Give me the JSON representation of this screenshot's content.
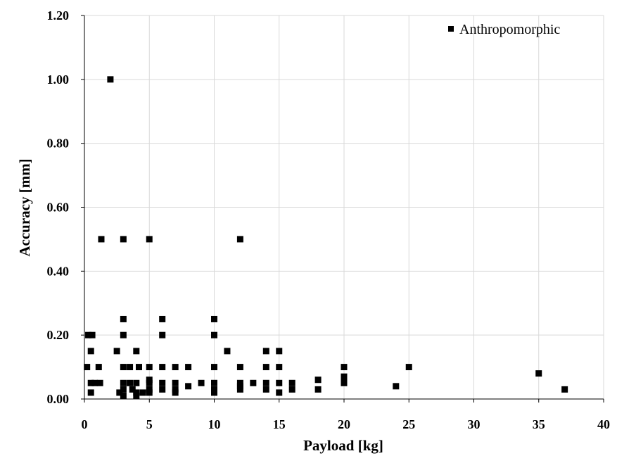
{
  "chart_data": {
    "type": "scatter",
    "title": "",
    "xlabel": "Payload [kg]",
    "ylabel": "Accuracy [mm]",
    "xlim": [
      0,
      40
    ],
    "ylim": [
      0,
      1.2
    ],
    "x_ticks": [
      "0",
      "5",
      "10",
      "15",
      "20",
      "25",
      "30",
      "35",
      "40"
    ],
    "y_ticks": [
      "0.00",
      "0.20",
      "0.40",
      "0.60",
      "0.80",
      "1.00",
      "1.20"
    ],
    "grid": true,
    "legend_position": "top-right",
    "marker": "square",
    "series": [
      {
        "name": "Anthropomorphic",
        "color": "#000000",
        "points": [
          [
            2,
            1.0
          ],
          [
            1.3,
            0.5
          ],
          [
            3,
            0.5
          ],
          [
            5,
            0.5
          ],
          [
            12,
            0.5
          ],
          [
            0.3,
            0.2
          ],
          [
            0.6,
            0.2
          ],
          [
            3,
            0.25
          ],
          [
            3,
            0.2
          ],
          [
            6,
            0.25
          ],
          [
            6,
            0.2
          ],
          [
            10,
            0.25
          ],
          [
            10,
            0.2
          ],
          [
            0.5,
            0.15
          ],
          [
            2.5,
            0.15
          ],
          [
            4,
            0.15
          ],
          [
            11,
            0.15
          ],
          [
            14,
            0.15
          ],
          [
            15,
            0.15
          ],
          [
            0.2,
            0.1
          ],
          [
            1.1,
            0.1
          ],
          [
            3,
            0.1
          ],
          [
            3.5,
            0.1
          ],
          [
            4.2,
            0.1
          ],
          [
            5,
            0.1
          ],
          [
            6,
            0.1
          ],
          [
            7,
            0.1
          ],
          [
            8,
            0.1
          ],
          [
            10,
            0.1
          ],
          [
            12,
            0.1
          ],
          [
            14,
            0.1
          ],
          [
            15,
            0.1
          ],
          [
            20,
            0.1
          ],
          [
            25,
            0.1
          ],
          [
            0.5,
            0.05
          ],
          [
            0.8,
            0.05
          ],
          [
            1.2,
            0.05
          ],
          [
            3,
            0.05
          ],
          [
            3.5,
            0.05
          ],
          [
            4,
            0.05
          ],
          [
            5,
            0.06
          ],
          [
            5,
            0.05
          ],
          [
            6,
            0.05
          ],
          [
            7,
            0.05
          ],
          [
            9,
            0.05
          ],
          [
            10,
            0.05
          ],
          [
            12,
            0.05
          ],
          [
            13,
            0.05
          ],
          [
            14,
            0.05
          ],
          [
            15,
            0.05
          ],
          [
            16,
            0.05
          ],
          [
            18,
            0.06
          ],
          [
            20,
            0.07
          ],
          [
            20,
            0.06
          ],
          [
            20,
            0.05
          ],
          [
            0.5,
            0.02
          ],
          [
            2.7,
            0.02
          ],
          [
            3,
            0.03
          ],
          [
            3,
            0.01
          ],
          [
            3.7,
            0.03
          ],
          [
            4,
            0.02
          ],
          [
            4,
            0.01
          ],
          [
            4.5,
            0.02
          ],
          [
            5,
            0.03
          ],
          [
            5,
            0.02
          ],
          [
            6,
            0.03
          ],
          [
            7,
            0.03
          ],
          [
            7,
            0.02
          ],
          [
            8,
            0.04
          ],
          [
            10,
            0.03
          ],
          [
            10,
            0.02
          ],
          [
            12,
            0.04
          ],
          [
            12,
            0.03
          ],
          [
            14,
            0.03
          ],
          [
            15,
            0.02
          ],
          [
            16,
            0.03
          ],
          [
            18,
            0.03
          ],
          [
            24,
            0.04
          ],
          [
            35,
            0.08
          ],
          [
            37,
            0.03
          ]
        ]
      }
    ]
  }
}
